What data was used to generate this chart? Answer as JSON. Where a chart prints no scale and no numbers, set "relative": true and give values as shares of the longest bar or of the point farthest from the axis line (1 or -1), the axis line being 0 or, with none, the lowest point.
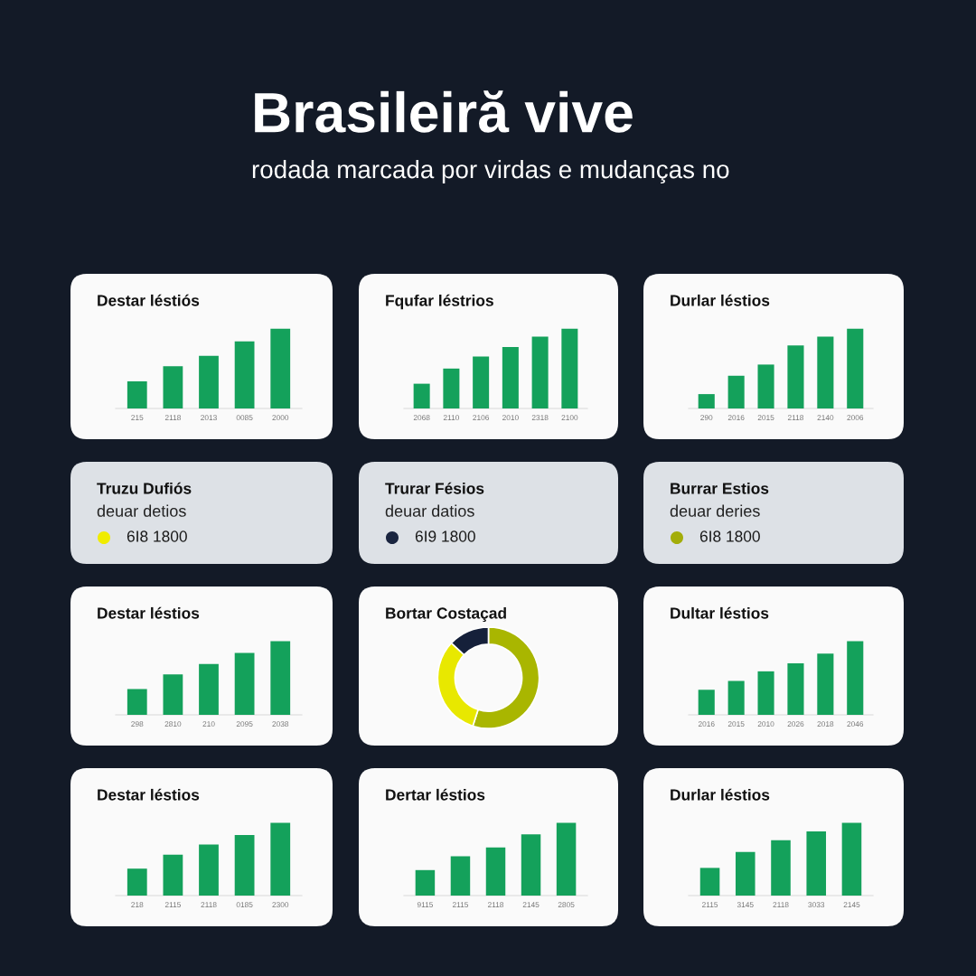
{
  "chart_data": [
    {
      "type": "other",
      "title": "Brasileiră vive",
      "subtitle": "rodada marcada por virdas e mudanças no"
    },
    {
      "type": "bar",
      "title": "Destar léstiós",
      "categories": [
        "215",
        "2118",
        "2013",
        "0085",
        "2000"
      ],
      "values": [
        0.34,
        0.53,
        0.66,
        0.84,
        1
      ],
      "color": "#14a15b",
      "relative": true
    },
    {
      "type": "bar",
      "title": "Fqufar léstrios",
      "categories": [
        "2068",
        "2110",
        "2106",
        "2010",
        "2318",
        "2100"
      ],
      "values": [
        0.31,
        0.5,
        0.65,
        0.77,
        0.9,
        1
      ],
      "color": "#14a15b",
      "relative": true
    },
    {
      "type": "bar",
      "title": "Durlar léstios",
      "categories": [
        "290",
        "2016",
        "2015",
        "2118",
        "2140",
        "2006"
      ],
      "values": [
        0.18,
        0.41,
        0.55,
        0.79,
        0.9,
        1
      ],
      "color": "#14a15b",
      "relative": true
    },
    {
      "type": "other",
      "title": "Truzu Dufiós",
      "subtitle": "deuar detios",
      "series": [
        {
          "name": "6I8 1800",
          "color": "#f0ec00"
        }
      ]
    },
    {
      "type": "other",
      "title": "Trurar Fésios",
      "subtitle": "deuar datios",
      "series": [
        {
          "name": "6I9 1800",
          "color": "#1a2540"
        }
      ]
    },
    {
      "type": "other",
      "title": "Burrar Estios",
      "subtitle": "deuar deries",
      "series": [
        {
          "name": "6I8 1800",
          "color": "#a3ad0a"
        }
      ]
    },
    {
      "type": "bar",
      "title": "Destar léstios",
      "categories": [
        "298",
        "2810",
        "210",
        "2095",
        "2038"
      ],
      "values": [
        0.35,
        0.55,
        0.69,
        0.84,
        1
      ],
      "color": "#14a15b",
      "relative": true
    },
    {
      "type": "donut",
      "title": "Bortar Costaçad",
      "categories": [
        null,
        null,
        null
      ],
      "values": [
        55,
        32,
        13
      ],
      "colors": [
        "#a9b600",
        "#e8e800",
        "#15203a"
      ]
    },
    {
      "type": "bar",
      "title": "Dultar léstios",
      "categories": [
        "2016",
        "2015",
        "2010",
        "2026",
        "2018",
        "2046"
      ],
      "values": [
        0.34,
        0.46,
        0.59,
        0.7,
        0.83,
        1
      ],
      "color": "#14a15b",
      "relative": true
    },
    {
      "type": "bar",
      "title": "Destar léstios",
      "categories": [
        "218",
        "2115",
        "2118",
        "0185",
        "2300"
      ],
      "values": [
        0.37,
        0.56,
        0.7,
        0.83,
        1
      ],
      "color": "#14a15b",
      "relative": true
    },
    {
      "type": "bar",
      "title": "Dertar léstios",
      "categories": [
        "9115",
        "2115",
        "2118",
        "2145",
        "2805"
      ],
      "values": [
        0.35,
        0.54,
        0.66,
        0.84,
        1
      ],
      "color": "#14a15b",
      "relative": true
    },
    {
      "type": "bar",
      "title": "Durlar léstios",
      "categories": [
        "2115",
        "3145",
        "2118",
        "3033",
        "2145"
      ],
      "values": [
        0.38,
        0.6,
        0.76,
        0.88,
        1
      ],
      "color": "#14a15b",
      "relative": true
    }
  ]
}
